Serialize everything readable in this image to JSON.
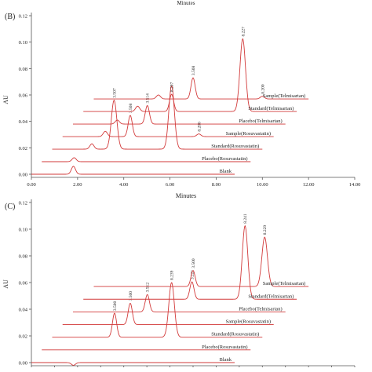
{
  "chart_data": [
    {
      "type": "line",
      "panel_label": "(B)",
      "top_label": "Minutes",
      "xlabel": "Minutes",
      "ylabel": "AU",
      "xlim": [
        0,
        14
      ],
      "ylim": [
        0,
        0.12
      ],
      "x_ticks": [
        "0.00",
        "2.00",
        "4.00",
        "6.00",
        "8.00",
        "10.00",
        "12.00",
        "14.00"
      ],
      "y_ticks": [
        "0.00",
        "0.02",
        "0.04",
        "0.06",
        "0.08",
        "0.10",
        "0.12"
      ],
      "grid": false,
      "series": [
        {
          "name": "Blank",
          "offset_min": 0.0,
          "offset_au": 0.0,
          "start": 0.0,
          "end": 8.8,
          "peaks": [
            {
              "rt": 1.82,
              "height": 0.006,
              "label": ""
            }
          ]
        },
        {
          "name": "Placebo(Rosuvastatin)",
          "offset_min": 0.45,
          "offset_au": 0.0095,
          "start": 0.45,
          "end": 9.5,
          "peaks": [
            {
              "rt": 1.85,
              "height": 0.003,
              "label": ""
            }
          ]
        },
        {
          "name": "Standard(Rosuvastatin)",
          "offset_min": 0.9,
          "offset_au": 0.019,
          "start": 0.9,
          "end": 10.0,
          "peaks": [
            {
              "rt": 2.62,
              "height": 0.004,
              "label": ""
            },
            {
              "rt": 3.58,
              "height": 0.037,
              "label": "3.507"
            },
            {
              "rt": 6.07,
              "height": 0.048,
              "label": ""
            }
          ]
        },
        {
          "name": "Sample(Rosuvastatin)",
          "offset_min": 1.35,
          "offset_au": 0.0285,
          "start": 1.35,
          "end": 10.5,
          "peaks": [
            {
              "rt": 3.2,
              "height": 0.004,
              "label": ""
            },
            {
              "rt": 4.28,
              "height": 0.016,
              "label": "3.508"
            },
            {
              "rt": 7.25,
              "height": 0.002,
              "label": "8.206"
            }
          ]
        },
        {
          "name": "Placebo(Telmisartan)",
          "offset_min": 1.8,
          "offset_au": 0.038,
          "start": 1.8,
          "end": 11.0,
          "peaks": [
            {
              "rt": 3.72,
              "height": 0.003,
              "label": ""
            },
            {
              "rt": 5.02,
              "height": 0.014,
              "label": "3.514"
            }
          ]
        },
        {
          "name": "Standard(Telmisartan)",
          "offset_min": 2.25,
          "offset_au": 0.0475,
          "start": 2.25,
          "end": 11.5,
          "peaks": [
            {
              "rt": 4.6,
              "height": 0.004,
              "label": ""
            },
            {
              "rt": 6.07,
              "height": 0.013,
              "label": "8.207"
            },
            {
              "rt": 9.15,
              "height": 0.055,
              "label": "8.227"
            }
          ]
        },
        {
          "name": "Sample(Telmisartan)",
          "offset_min": 2.7,
          "offset_au": 0.057,
          "start": 2.7,
          "end": 12.0,
          "peaks": [
            {
              "rt": 5.5,
              "height": 0.003,
              "label": ""
            },
            {
              "rt": 7.0,
              "height": 0.016,
              "label": "3.508"
            },
            {
              "rt": 10.0,
              "height": 0.002,
              "label": "8.200"
            }
          ]
        }
      ]
    },
    {
      "type": "line",
      "panel_label": "(C)",
      "xlabel": "",
      "ylabel": "AU",
      "xlim": [
        0,
        14
      ],
      "ylim": [
        0,
        0.12
      ],
      "x_ticks": [],
      "y_ticks": [
        "0.00",
        "0.02",
        "0.04",
        "0.06",
        "0.08",
        "0.10",
        "0.12"
      ],
      "grid": false,
      "series": [
        {
          "name": "Blank",
          "offset_min": 0.0,
          "offset_au": 0.0,
          "start": 0.0,
          "end": 8.8,
          "peaks": [
            {
              "rt": 1.82,
              "height": -0.002,
              "label": ""
            }
          ]
        },
        {
          "name": "Placebo(Rosuvastatin)",
          "offset_min": 0.45,
          "offset_au": 0.0095,
          "start": 0.45,
          "end": 9.5,
          "peaks": []
        },
        {
          "name": "Standard(Rosuvastatin)",
          "offset_min": 0.9,
          "offset_au": 0.019,
          "start": 0.9,
          "end": 10.0,
          "peaks": [
            {
              "rt": 3.6,
              "height": 0.018,
              "label": "3.500"
            },
            {
              "rt": 6.07,
              "height": 0.041,
              "label": "8.239"
            }
          ]
        },
        {
          "name": "Sample(Rosuvastatin)",
          "offset_min": 1.35,
          "offset_au": 0.0285,
          "start": 1.35,
          "end": 10.5,
          "peaks": [
            {
              "rt": 4.28,
              "height": 0.016,
              "label": "3.500"
            }
          ]
        },
        {
          "name": "Placebo(Telmisartan)",
          "offset_min": 1.8,
          "offset_au": 0.038,
          "start": 1.8,
          "end": 11.0,
          "peaks": [
            {
              "rt": 5.02,
              "height": 0.013,
              "label": "3.512"
            }
          ]
        },
        {
          "name": "Standard(Telmisartan)",
          "offset_min": 2.25,
          "offset_au": 0.0475,
          "start": 2.25,
          "end": 11.5,
          "peaks": [
            {
              "rt": 6.95,
              "height": 0.013,
              "label": "3.221"
            },
            {
              "rt": 9.25,
              "height": 0.055,
              "label": "8.241"
            }
          ]
        },
        {
          "name": "Sample(Telmisartan)",
          "offset_min": 2.7,
          "offset_au": 0.057,
          "start": 2.7,
          "end": 12.0,
          "peaks": [
            {
              "rt": 7.0,
              "height": 0.012,
              "label": "3.500"
            },
            {
              "rt": 10.1,
              "height": 0.037,
              "label": "8.229"
            }
          ]
        }
      ]
    }
  ]
}
